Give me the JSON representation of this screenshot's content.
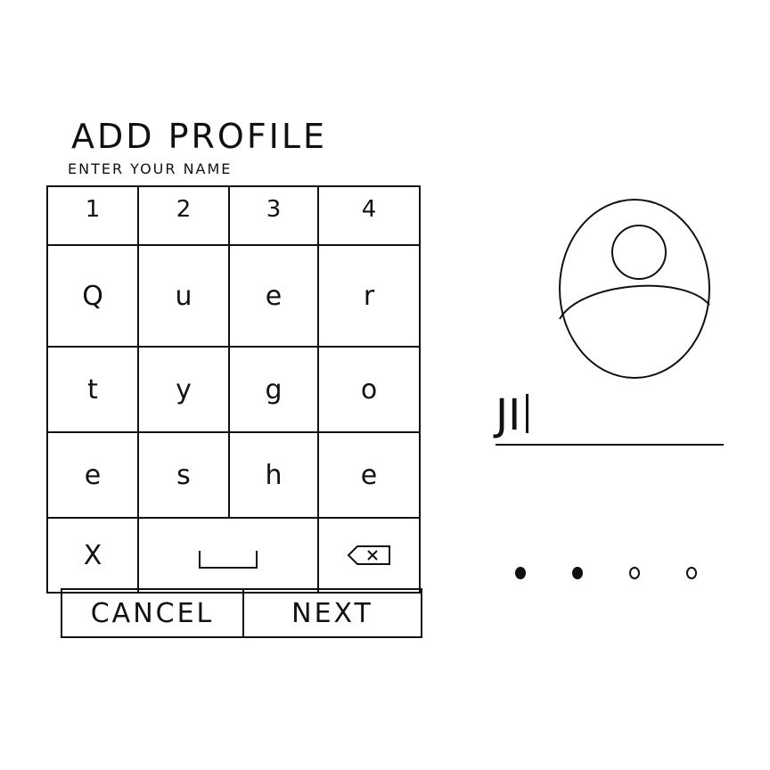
{
  "header": {
    "title": "ADD PROFILE",
    "subtitle": "ENTER YOUR NAME"
  },
  "keypad": {
    "rows": [
      [
        "1",
        "2",
        "3",
        "4"
      ],
      [
        "Q",
        "u",
        "e",
        "r"
      ],
      [
        "t",
        "y",
        "g",
        "o"
      ],
      [
        "e",
        "s",
        "h",
        "e"
      ]
    ],
    "clear_label": "X"
  },
  "actions": {
    "cancel_label": "CANCEL",
    "next_label": "NEXT"
  },
  "name_field": {
    "value": "JI"
  },
  "progress": {
    "current_step": 2,
    "total_steps": 4
  },
  "icons": {
    "avatar": "user-avatar-icon",
    "space": "space-bar-icon",
    "backspace": "backspace-icon"
  }
}
